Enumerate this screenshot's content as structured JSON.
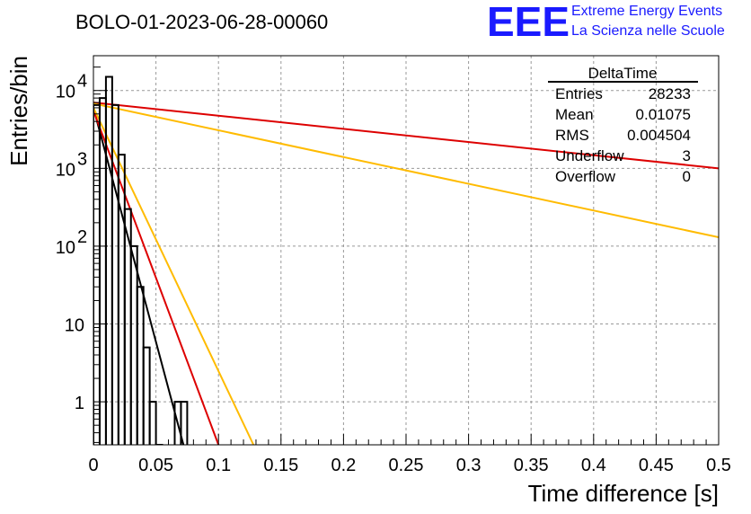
{
  "chart_data": {
    "type": "histogram",
    "title": "BOLO-01-2023-06-28-00060",
    "xlabel": "Time difference [s]",
    "ylabel": "Entries/bin",
    "xlim": [
      0,
      0.5
    ],
    "ylim": [
      0.28,
      28000
    ],
    "yscale": "log",
    "grid": true,
    "x_ticks": [
      0,
      0.05,
      0.1,
      0.15,
      0.2,
      0.25,
      0.3,
      0.35,
      0.4,
      0.45,
      0.5
    ],
    "x_tick_labels": [
      "0",
      "0.05",
      "0.1",
      "0.15",
      "0.2",
      "0.25",
      "0.3",
      "0.35",
      "0.4",
      "0.45",
      "0.5"
    ],
    "y_tick_labels": [
      {
        "value": 1,
        "base": "1",
        "exp": ""
      },
      {
        "value": 10,
        "base": "10",
        "exp": ""
      },
      {
        "value": 100,
        "base": "10",
        "exp": "2"
      },
      {
        "value": 1000,
        "base": "10",
        "exp": "3"
      },
      {
        "value": 10000,
        "base": "10",
        "exp": "4"
      }
    ],
    "histogram": {
      "bin_width": 0.005,
      "bin_start": 0,
      "counts": [
        6500,
        8000,
        15000,
        6500,
        1500,
        300,
        100,
        30,
        5,
        1,
        0.1,
        0,
        0,
        1,
        1
      ],
      "color": "#000000"
    },
    "fits": [
      {
        "color": "#000000",
        "x0": 0,
        "y0": 6000,
        "x1": 0.072,
        "y1": 0.28
      },
      {
        "color": "#dd0000",
        "x0": 0,
        "y0": 5500,
        "x1": 0.1,
        "y1": 0.28
      },
      {
        "color": "#ffbb00",
        "x0": 0,
        "y0": 6000,
        "x1": 0.128,
        "y1": 0.28
      },
      {
        "color": "#dd0000",
        "x0": 0,
        "y0": 7000,
        "x1": 0.5,
        "y1": 1000
      },
      {
        "color": "#ffbb00",
        "x0": 0,
        "y0": 6800,
        "x1": 0.5,
        "y1": 130
      }
    ]
  },
  "stats_box": {
    "title": "DeltaTime",
    "rows": [
      {
        "label": "Entries",
        "value": "28233"
      },
      {
        "label": "Mean",
        "value": "0.01075"
      },
      {
        "label": "RMS",
        "value": "0.004504"
      },
      {
        "label": "Underflow",
        "value": "3"
      },
      {
        "label": "Overflow",
        "value": "0"
      }
    ]
  },
  "logo": {
    "mark": "EEE",
    "line1": "Extreme Energy Events",
    "line2": "La Scienza nelle Scuole",
    "color": "#1a1aff"
  }
}
